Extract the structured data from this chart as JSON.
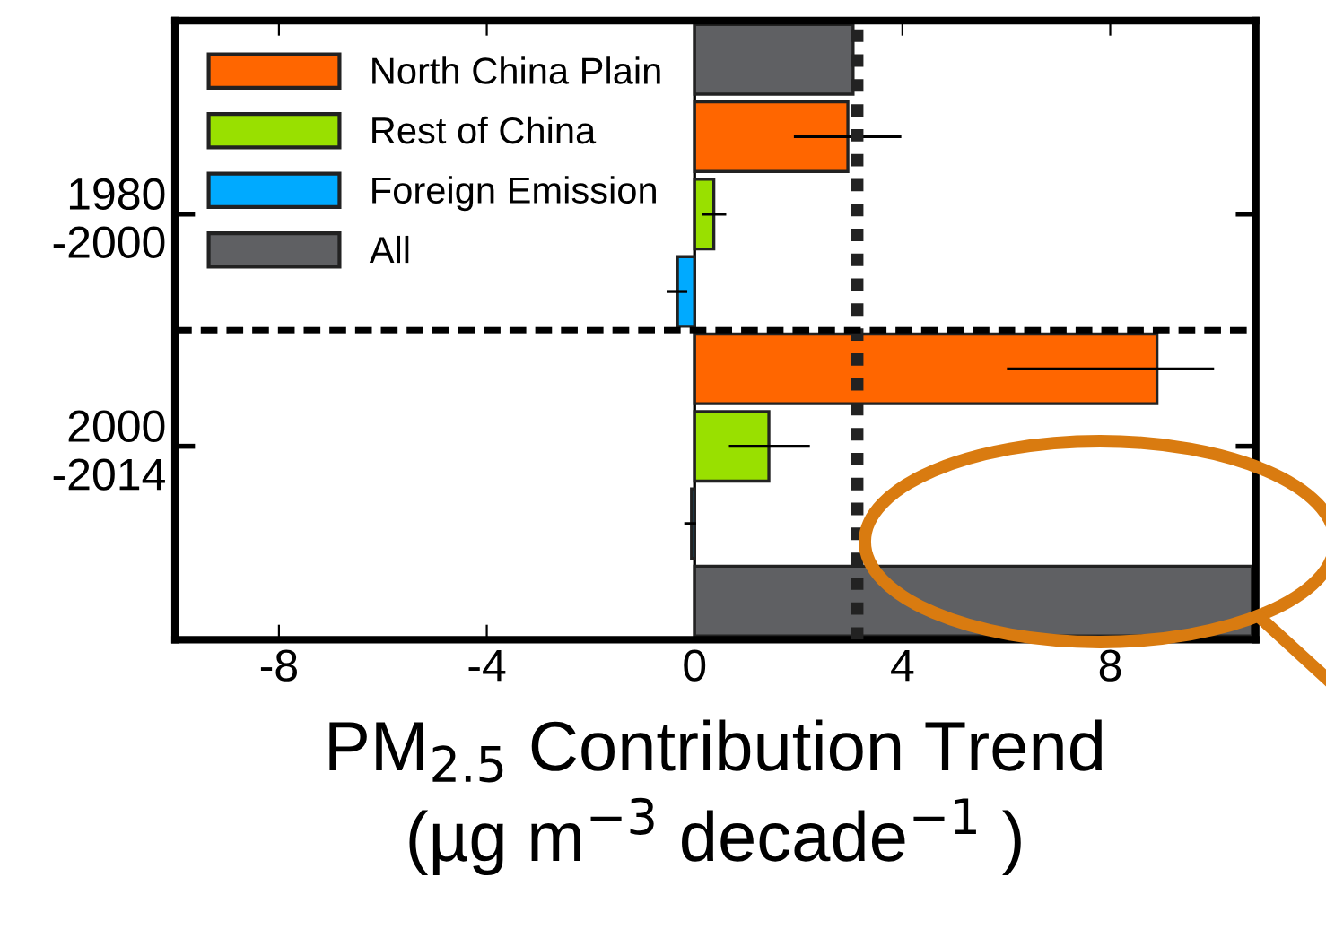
{
  "chart_data": {
    "type": "bar",
    "orientation": "horizontal",
    "categories": [
      null,
      null,
      "1980\n-2000",
      null,
      null,
      "2000\n-2014",
      null,
      null
    ],
    "xlabel": "PM$_{2.5}$ Contribution Trend\n(µg m$^{−3}$ decade$^{−1}$ )",
    "series": [
      {
        "name": "North China Plain",
        "color": "#ff6600",
        "values": [
          null,
          2.95,
          null,
          null,
          8.9,
          null,
          null,
          null
        ],
        "errors": [
          null,
          [
            1.94,
            3.95
          ],
          null,
          null,
          [
            6.04,
            9.97
          ],
          null,
          null,
          null
        ]
      },
      {
        "name": "Rest of China",
        "color": "#99e000",
        "values": [
          null,
          null,
          0.37,
          null,
          null,
          1.43,
          null,
          null
        ],
        "errors": [
          null,
          null,
          [
            0.17,
            0.58
          ],
          null,
          null,
          [
            0.69,
            2.19
          ],
          null,
          null
        ]
      },
      {
        "name": "Foreign Emission",
        "color": "#00aaff",
        "values": [
          null,
          null,
          null,
          -0.33,
          null,
          null,
          -0.06,
          null
        ],
        "errors": [
          null,
          null,
          null,
          [
            -0.5,
            -0.17
          ],
          null,
          null,
          [
            -0.17,
            0
          ],
          null
        ]
      },
      {
        "name": "All",
        "color": "#5f6063",
        "values": [
          3.05,
          null,
          null,
          null,
          null,
          null,
          null,
          10.73
        ]
      }
    ],
    "xlim": [
      -10,
      10.8
    ],
    "xticks": [
      -8,
      -4,
      0,
      4,
      8
    ],
    "ref_lines": [
      {
        "axis": "x",
        "value": 0,
        "line_style": "solid",
        "color": "#000000"
      },
      {
        "axis": "x",
        "value": 3.13,
        "line_style": "dotted",
        "color": "#222222"
      }
    ],
    "legend": "top left",
    "grid": false
  }
}
